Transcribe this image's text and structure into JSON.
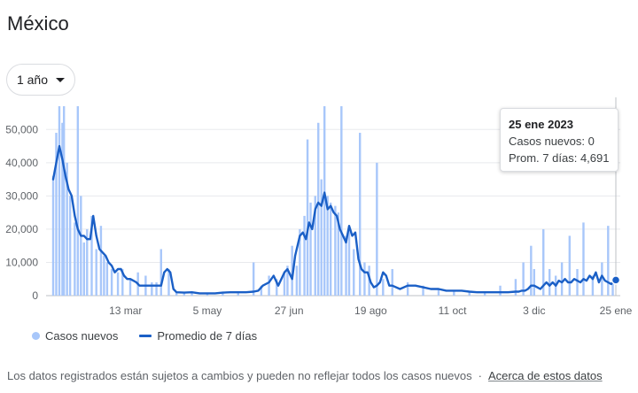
{
  "header": {
    "title": "México"
  },
  "range_selector": {
    "label": "1 año"
  },
  "tooltip": {
    "date": "25 ene 2023",
    "new_cases_label": "Casos nuevos:",
    "new_cases_value": "0",
    "avg_label": "Prom. 7 días:",
    "avg_value": "4,691"
  },
  "legend": {
    "bars_label": "Casos nuevos",
    "line_label": "Promedio de 7 días"
  },
  "footer": {
    "note": "Los datos registrados están sujetos a cambios y pueden no reflejar todos los casos nuevos",
    "separator": "·",
    "link": "Acerca de estos datos"
  },
  "colors": {
    "bars": "#a8c7fa",
    "line": "#1a5fc6",
    "grid": "#e8eaed",
    "axis_text": "#5f6368"
  },
  "chart_data": {
    "type": "bar",
    "ylim": [
      0,
      57000
    ],
    "yticks": [
      0,
      10000,
      20000,
      30000,
      40000,
      50000
    ],
    "ytick_labels": [
      "0",
      "10,000",
      "20,000",
      "30,000",
      "40,000",
      "50,000"
    ],
    "xticks": [
      {
        "label": "13 mar",
        "day": 47
      },
      {
        "label": "5 may",
        "day": 100
      },
      {
        "label": "27 jun",
        "day": 153
      },
      {
        "label": "19 ago",
        "day": 206
      },
      {
        "label": "11 oct",
        "day": 259
      },
      {
        "label": "3 dic",
        "day": 312
      },
      {
        "label": "25 ene",
        "day": 365
      }
    ],
    "x_start": "25 ene 2022",
    "series": [
      {
        "name": "Casos nuevos",
        "type": "bar",
        "days": [
          0,
          2,
          4,
          6,
          7,
          9,
          11,
          14,
          16,
          18,
          20,
          22,
          25,
          28,
          31,
          33,
          35,
          38,
          42,
          45,
          50,
          55,
          60,
          64,
          67,
          70,
          75,
          80,
          85,
          90,
          100,
          110,
          120,
          130,
          135,
          140,
          145,
          150,
          152,
          155,
          158,
          160,
          163,
          165,
          167,
          170,
          172,
          174,
          176,
          178,
          180,
          183,
          185,
          187,
          190,
          192,
          195,
          199,
          202,
          205,
          210,
          214,
          220,
          230,
          240,
          250,
          260,
          270,
          280,
          290,
          300,
          305,
          310,
          312,
          318,
          322,
          326,
          330,
          335,
          340,
          344,
          350,
          356,
          360,
          363,
          365
        ],
        "values": [
          36000,
          49000,
          57000,
          52000,
          57000,
          40000,
          30000,
          22000,
          57000,
          30000,
          16000,
          20000,
          24000,
          14000,
          21000,
          12000,
          10000,
          8000,
          7000,
          8000,
          5000,
          7000,
          6000,
          4000,
          4000,
          14000,
          8000,
          1200,
          1000,
          800,
          700,
          900,
          1000,
          10000,
          3000,
          6000,
          5000,
          7000,
          9000,
          15000,
          9000,
          20000,
          24000,
          47000,
          28000,
          30000,
          52000,
          35000,
          57000,
          30000,
          28000,
          27000,
          25000,
          57000,
          18000,
          20000,
          14000,
          49000,
          10000,
          9000,
          40000,
          5000,
          8000,
          4000,
          3000,
          2000,
          1500,
          1200,
          1000,
          3000,
          5000,
          10000,
          15000,
          8000,
          20000,
          8000,
          6000,
          10000,
          18000,
          8000,
          22000,
          6000,
          10000,
          21000,
          4000,
          0
        ]
      },
      {
        "name": "Promedio de 7 días",
        "type": "line",
        "days": [
          0,
          2,
          4,
          6,
          8,
          10,
          12,
          14,
          16,
          18,
          20,
          22,
          24,
          26,
          28,
          30,
          32,
          34,
          36,
          38,
          40,
          42,
          44,
          46,
          48,
          50,
          52,
          54,
          56,
          58,
          60,
          62,
          64,
          66,
          68,
          70,
          72,
          74,
          76,
          78,
          80,
          85,
          90,
          95,
          100,
          105,
          110,
          115,
          120,
          125,
          130,
          133,
          136,
          140,
          143,
          146,
          150,
          152,
          155,
          157,
          160,
          162,
          164,
          166,
          168,
          170,
          172,
          174,
          176,
          178,
          180,
          182,
          184,
          186,
          188,
          190,
          192,
          194,
          196,
          198,
          200,
          202,
          204,
          206,
          208,
          210,
          212,
          214,
          216,
          218,
          220,
          225,
          230,
          235,
          240,
          245,
          250,
          255,
          260,
          265,
          270,
          275,
          280,
          285,
          290,
          295,
          300,
          302,
          304,
          306,
          308,
          310,
          312,
          314,
          316,
          318,
          320,
          322,
          324,
          326,
          328,
          330,
          332,
          334,
          336,
          338,
          340,
          342,
          344,
          346,
          348,
          350,
          352,
          354,
          356,
          358,
          360,
          362,
          363,
          365
        ],
        "values": [
          35000,
          40000,
          45000,
          41000,
          36000,
          32000,
          30000,
          24000,
          20000,
          18000,
          18000,
          17000,
          17000,
          24000,
          18000,
          14000,
          13000,
          12000,
          10000,
          9000,
          7000,
          8000,
          8000,
          6000,
          5000,
          5000,
          4500,
          4000,
          3000,
          3000,
          3000,
          3000,
          3000,
          3000,
          3000,
          3000,
          7000,
          8000,
          7000,
          2000,
          1000,
          900,
          1000,
          700,
          700,
          700,
          900,
          1000,
          1000,
          1000,
          1200,
          1500,
          3000,
          4000,
          6000,
          3000,
          7000,
          8000,
          5000,
          12000,
          18000,
          19000,
          17000,
          22000,
          20000,
          26000,
          28000,
          27000,
          31000,
          26000,
          27000,
          25000,
          24000,
          20000,
          18000,
          16000,
          21000,
          18000,
          19000,
          11000,
          8000,
          7000,
          7000,
          4000,
          2500,
          3000,
          4000,
          7000,
          6000,
          3000,
          3000,
          2000,
          3000,
          3000,
          2500,
          2000,
          2000,
          1500,
          1500,
          1500,
          1200,
          1000,
          1000,
          1000,
          1000,
          1000,
          1200,
          1200,
          1500,
          1500,
          2000,
          3000,
          3000,
          2500,
          2000,
          3000,
          4000,
          3000,
          4000,
          3000,
          4500,
          4000,
          5000,
          4000,
          4000,
          5000,
          4500,
          4000,
          5000,
          4500,
          6000,
          5000,
          7000,
          4000,
          6000,
          4500,
          4000,
          3500,
          4000,
          4691
        ]
      }
    ]
  }
}
